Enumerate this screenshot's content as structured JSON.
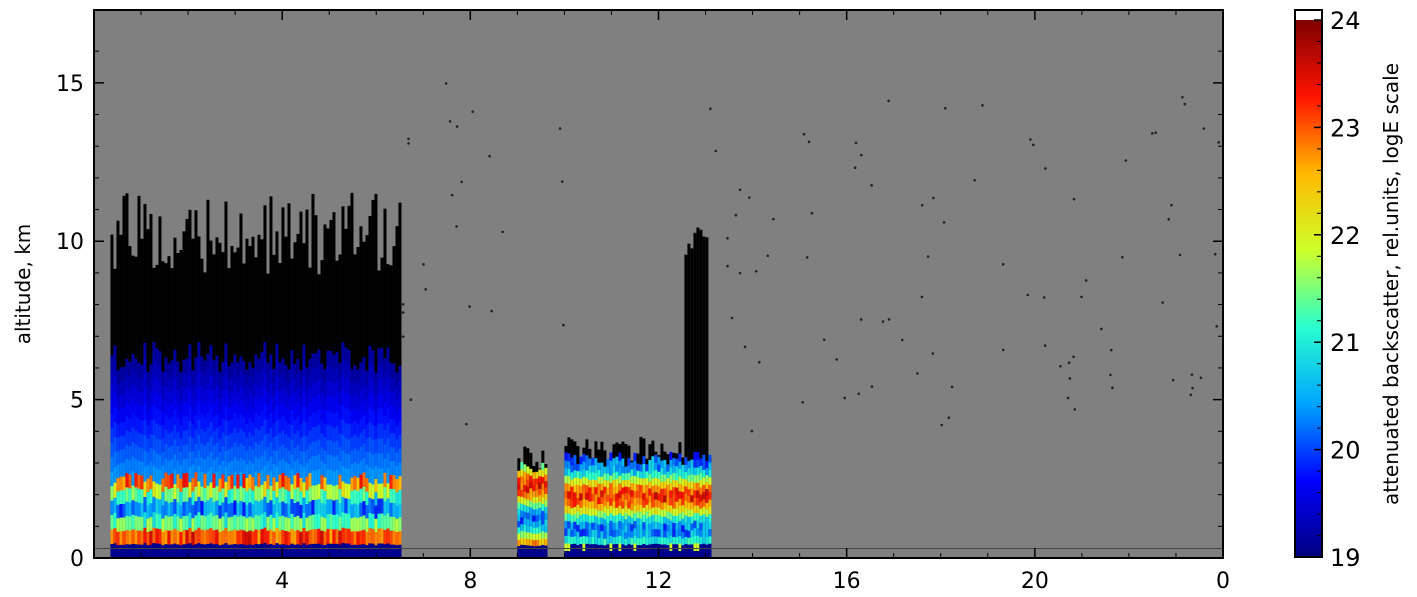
{
  "chart_data": {
    "type": "heatmap",
    "title": "",
    "ylabel": "altitude, km",
    "xlabel": "",
    "x_tick_labels": [
      "4",
      "8",
      "12",
      "16",
      "20",
      "0"
    ],
    "x_tick_hours": [
      4,
      8,
      12,
      16,
      20,
      24
    ],
    "xlim": [
      0,
      24
    ],
    "ylim": [
      0,
      17.3
    ],
    "y_ticks": [
      0,
      5,
      10,
      15
    ],
    "background_color": "#808080",
    "colorbar": {
      "label": "attenuated backscatter, rel.units, logE scale",
      "ticks": [
        19,
        20,
        21,
        22,
        23,
        24
      ],
      "range": [
        19,
        24
      ],
      "colormap": [
        "#00007f",
        "#0000ff",
        "#00a5ff",
        "#29ffce",
        "#ceff29",
        "#ffb900",
        "#ff1400",
        "#7f0000"
      ],
      "over_color": "#ffffff",
      "under_color": "#000000"
    },
    "segments": [
      {
        "start_h": 0.35,
        "end_h": 6.5,
        "cloud_top_km": 10.5,
        "signal_top_km": 6.5,
        "boundary_layer_km": 2.5,
        "note": "aerosol layer with strong signal"
      },
      {
        "start_h": 9.0,
        "end_h": 9.6,
        "cloud_top_km": 3.3,
        "signal_top_km": 3.0,
        "boundary_layer_km": 3.0
      },
      {
        "start_h": 10.0,
        "end_h": 13.1,
        "cloud_top_km": 3.5,
        "signal_top_km": 3.2,
        "boundary_layer_km": 3.1,
        "peak_top_km": 10.5,
        "peak_at_h": 12.8
      }
    ],
    "gaps": [
      [
        6.5,
        9.0
      ],
      [
        9.6,
        10.0
      ],
      [
        13.1,
        24.0
      ]
    ],
    "grid": false,
    "legend": "colorbar-right"
  }
}
